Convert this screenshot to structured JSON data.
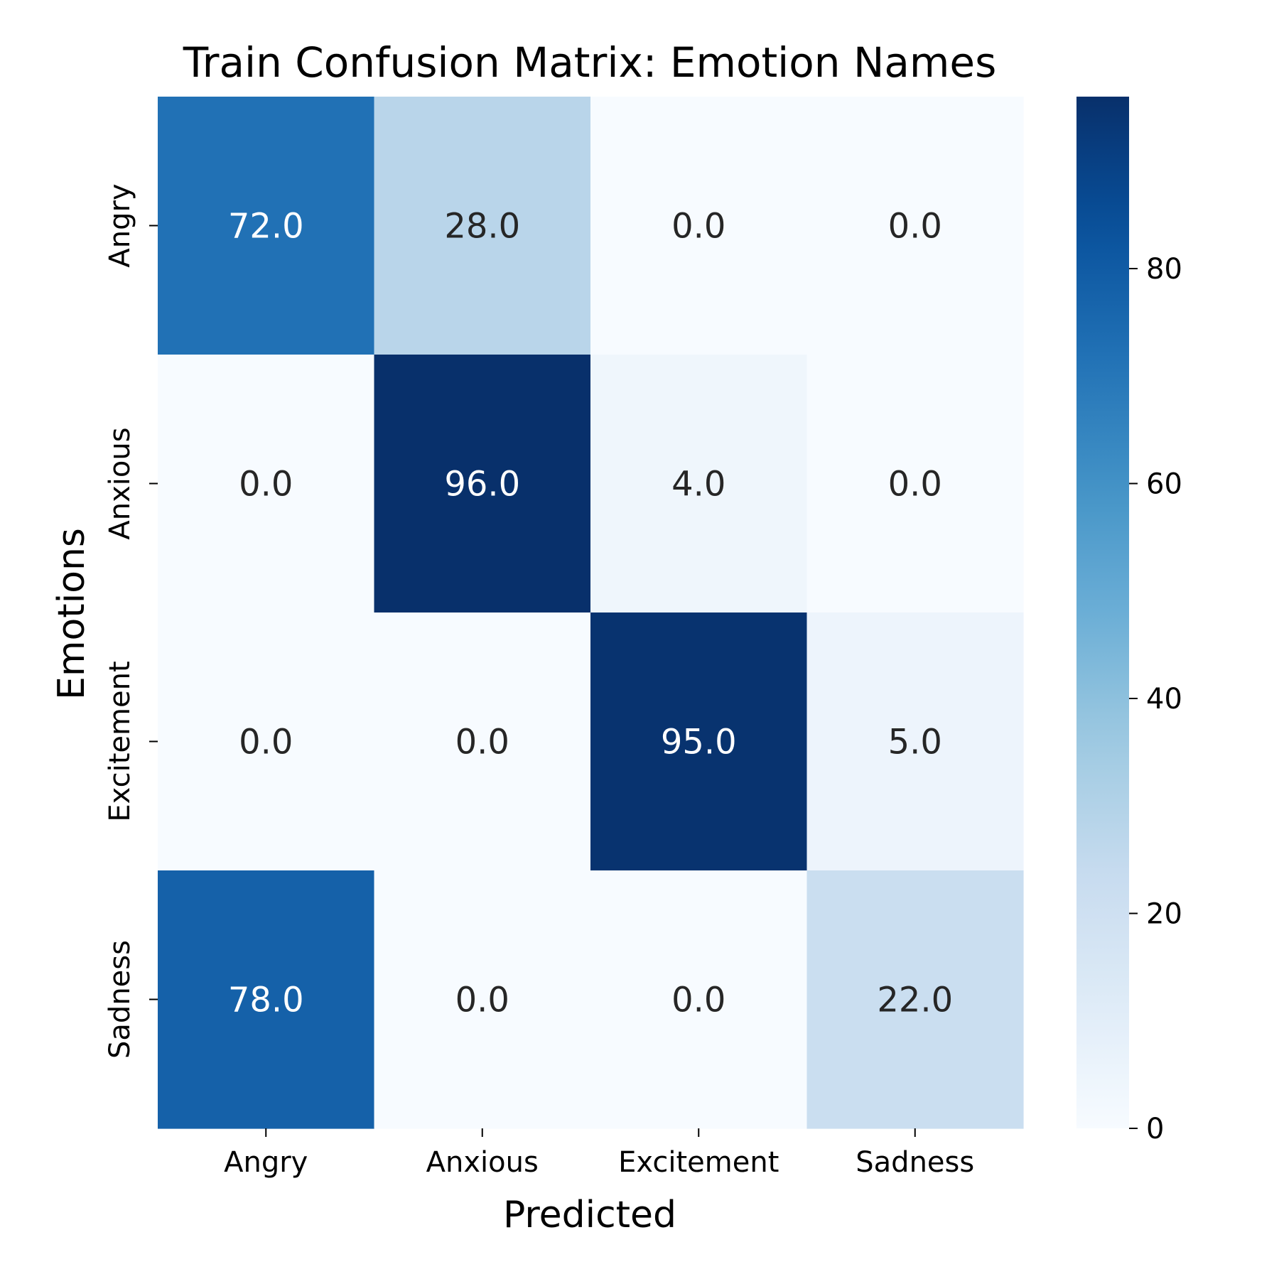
{
  "chart_data": {
    "type": "heatmap",
    "title": "Train Confusion Matrix: Emotion Names",
    "xlabel": "Predicted",
    "ylabel": "Emotions",
    "x_categories": [
      "Angry",
      "Anxious",
      "Excitement",
      "Sadness"
    ],
    "y_categories": [
      "Angry",
      "Anxious",
      "Excitement",
      "Sadness"
    ],
    "values": [
      [
        72.0,
        28.0,
        0.0,
        0.0
      ],
      [
        0.0,
        96.0,
        4.0,
        0.0
      ],
      [
        0.0,
        0.0,
        95.0,
        5.0
      ],
      [
        78.0,
        0.0,
        0.0,
        22.0
      ]
    ],
    "value_labels": [
      [
        "72.0",
        "28.0",
        "0.0",
        "0.0"
      ],
      [
        "0.0",
        "96.0",
        "4.0",
        "0.0"
      ],
      [
        "0.0",
        "0.0",
        "95.0",
        "5.0"
      ],
      [
        "78.0",
        "0.0",
        "0.0",
        "22.0"
      ]
    ],
    "colormap": "Blues",
    "colorbar": {
      "range": [
        0,
        96
      ],
      "ticks": [
        0,
        20,
        40,
        60,
        80
      ],
      "tick_labels": [
        "0",
        "20",
        "40",
        "60",
        "80"
      ]
    },
    "grid": false
  }
}
